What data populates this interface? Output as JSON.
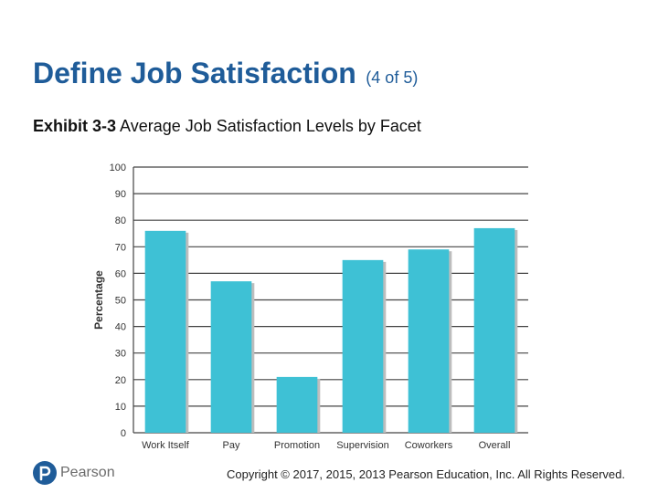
{
  "slide": {
    "title": "Define Job Satisfaction",
    "title_suffix": "(4 of 5)",
    "exhibit_label": "Exhibit 3-3",
    "exhibit_caption": "Average Job Satisfaction Levels by Facet",
    "logo_text": "Pearson",
    "copyright": "Copyright © 2017, 2015, 2013 Pearson Education, Inc. All Rights Reserved."
  },
  "colors": {
    "title": "#1f5c99",
    "bar": "#3ec1d5",
    "bar_shadow": "#bdbdbd",
    "gridline": "#444444",
    "logo": "#1f5c99"
  },
  "chart_data": {
    "type": "bar",
    "ylabel": "Percentage",
    "ylim": [
      0,
      100
    ],
    "yticks": [
      0,
      10,
      20,
      30,
      40,
      50,
      60,
      70,
      80,
      90,
      100
    ],
    "grid": true,
    "categories": [
      "Work Itself",
      "Pay",
      "Promotion",
      "Supervision",
      "Coworkers",
      "Overall"
    ],
    "values": [
      76,
      57,
      21,
      65,
      69,
      77
    ]
  }
}
